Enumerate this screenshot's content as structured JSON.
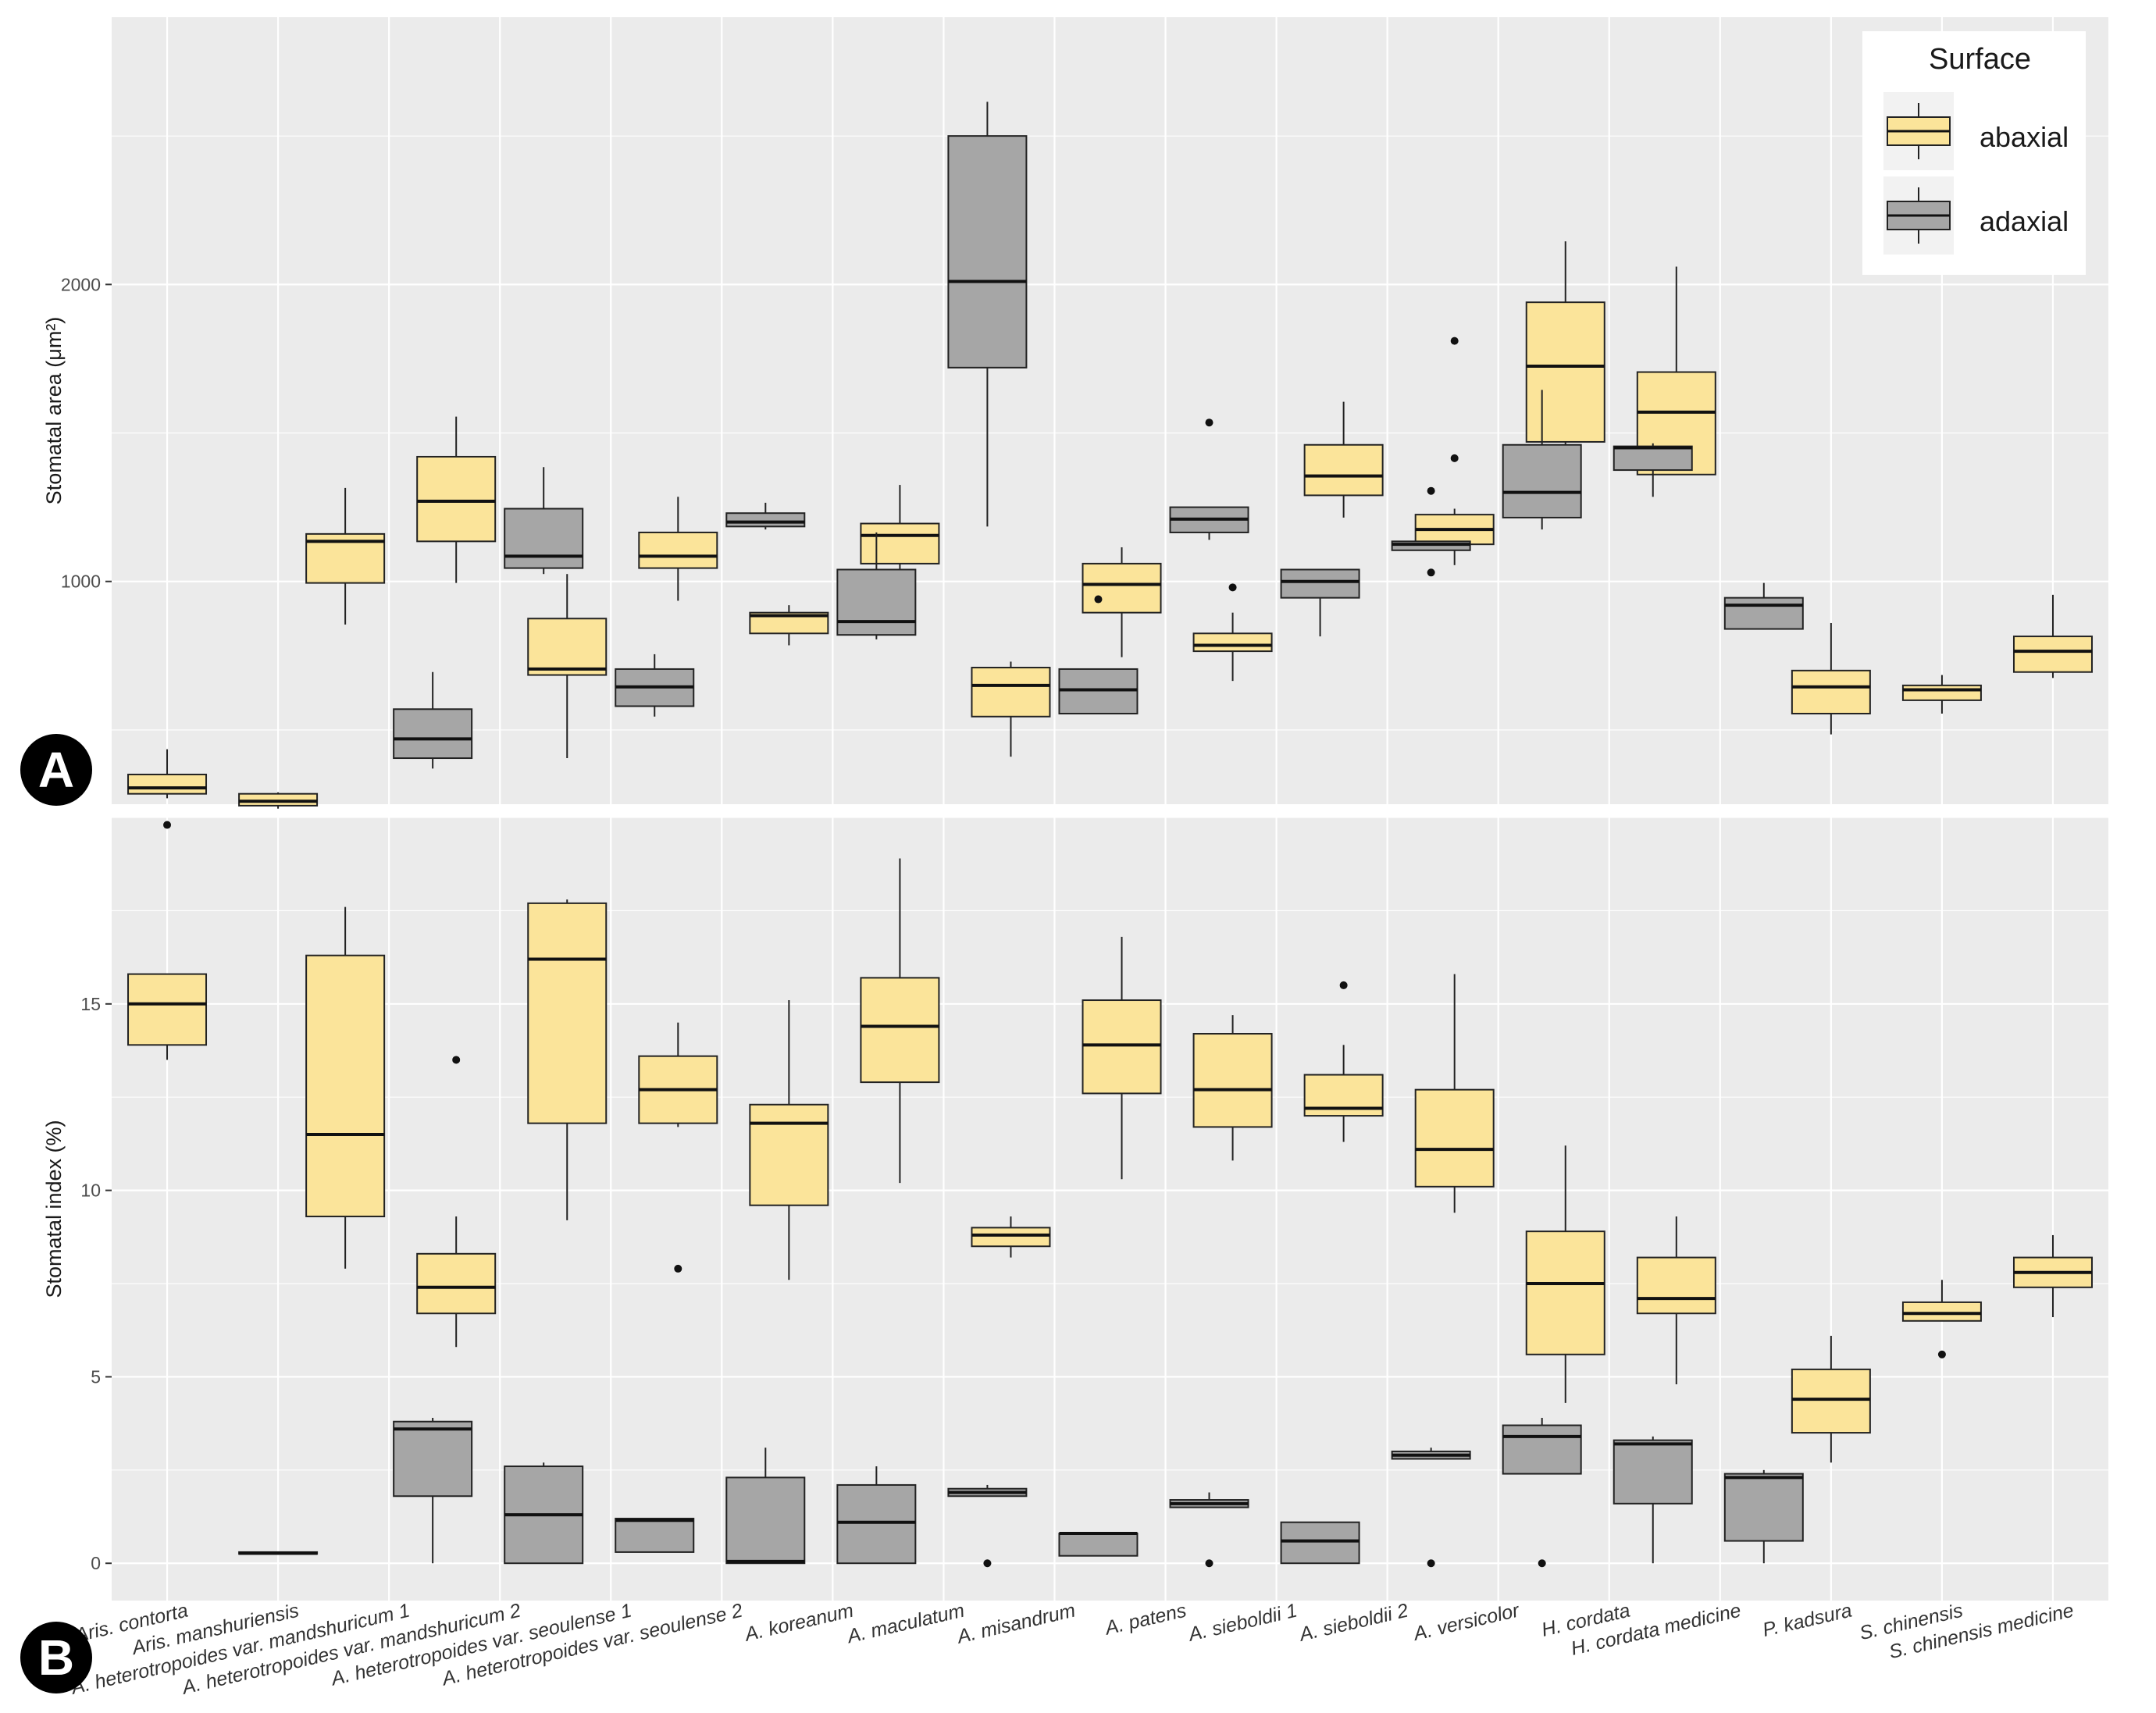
{
  "colors": {
    "abaxial": "#fbe49a",
    "adaxial": "#a6a6a6",
    "panel_bg": "#ebebeb",
    "grid": "#ffffff"
  },
  "chart_data": [
    {
      "panel": "A",
      "type": "boxplot",
      "ylabel": "Stomatal area (μm²)",
      "ylim": [
        250,
        2900
      ],
      "yticks": [
        1000,
        2000
      ],
      "legend": {
        "title": "Surface",
        "entries": [
          "abaxial",
          "adaxial"
        ],
        "position": "top-right"
      },
      "categories": [
        "Aris. contorta",
        "Aris. manshuriensis",
        "A. heterotropoides var. mandshuricum 1",
        "A. heterotropoides var. mandshuricum 2",
        "A. heterotropoides var. seoulense 1",
        "A. heterotropoides var. seoulense 2",
        "A. koreanum",
        "A. maculatum",
        "A. misandrum",
        "A. patens",
        "A. sieboldii 1",
        "A. sieboldii 2",
        "A. versicolor",
        "H. cordata",
        "H. cordata medicine",
        "P. kadsura",
        "S. chinensis",
        "S. chinensis medicine"
      ],
      "series": [
        {
          "name": "abaxial",
          "boxes": [
            {
              "min": 270,
              "q1": 285,
              "median": 305,
              "q3": 350,
              "max": 435,
              "outliers": []
            },
            {
              "min": 235,
              "q1": 245,
              "median": 260,
              "q3": 285,
              "max": 290,
              "outliers": []
            },
            {
              "min": 855,
              "q1": 995,
              "median": 1135,
              "q3": 1160,
              "max": 1315,
              "outliers": []
            },
            {
              "min": 995,
              "q1": 1135,
              "median": 1270,
              "q3": 1420,
              "max": 1555,
              "outliers": []
            },
            {
              "min": 405,
              "q1": 685,
              "median": 705,
              "q3": 875,
              "max": 1025,
              "outliers": []
            },
            {
              "min": 935,
              "q1": 1045,
              "median": 1085,
              "q3": 1165,
              "max": 1285,
              "outliers": []
            },
            {
              "min": 785,
              "q1": 825,
              "median": 885,
              "q3": 895,
              "max": 920,
              "outliers": []
            },
            {
              "min": 1000,
              "q1": 1060,
              "median": 1155,
              "q3": 1195,
              "max": 1325,
              "outliers": []
            },
            {
              "min": 410,
              "q1": 545,
              "median": 650,
              "q3": 710,
              "max": 730,
              "outliers": []
            },
            {
              "min": 745,
              "q1": 895,
              "median": 990,
              "q3": 1060,
              "max": 1115,
              "outliers": []
            },
            {
              "min": 665,
              "q1": 765,
              "median": 785,
              "q3": 825,
              "max": 895,
              "outliers": [
                980
              ]
            },
            {
              "min": 1215,
              "q1": 1290,
              "median": 1355,
              "q3": 1460,
              "max": 1605,
              "outliers": []
            },
            {
              "min": 1055,
              "q1": 1125,
              "median": 1175,
              "q3": 1225,
              "max": 1245,
              "outliers": [
                1415,
                1810
              ]
            },
            {
              "min": 1285,
              "q1": 1470,
              "median": 1725,
              "q3": 1940,
              "max": 2145,
              "outliers": []
            },
            {
              "min": null,
              "q1": 1360,
              "median": 1570,
              "q3": 1705,
              "max": 2060,
              "outliers": []
            },
            {
              "min": 485,
              "q1": 555,
              "median": 645,
              "q3": 700,
              "max": 860,
              "outliers": []
            },
            {
              "min": 555,
              "q1": 600,
              "median": 635,
              "q3": 650,
              "max": 685,
              "outliers": []
            },
            {
              "min": 675,
              "q1": 695,
              "median": 765,
              "q3": 815,
              "max": 955,
              "outliers": []
            }
          ]
        },
        {
          "name": "adaxial",
          "boxes": [
            null,
            null,
            {
              "min": 370,
              "q1": 405,
              "median": 470,
              "q3": 570,
              "max": 695,
              "outliers": []
            },
            {
              "min": 1025,
              "q1": 1045,
              "median": 1085,
              "q3": 1245,
              "max": 1385,
              "outliers": []
            },
            {
              "min": 545,
              "q1": 580,
              "median": 645,
              "q3": 705,
              "max": 755,
              "outliers": []
            },
            {
              "min": 1175,
              "q1": 1185,
              "median": 1200,
              "q3": 1230,
              "max": 1265,
              "outliers": []
            },
            {
              "min": 805,
              "q1": 820,
              "median": 865,
              "q3": 1040,
              "max": 1165,
              "outliers": []
            },
            {
              "min": 1185,
              "q1": 1720,
              "median": 2010,
              "q3": 2500,
              "max": 2615,
              "outliers": []
            },
            {
              "min": 555,
              "q1": 555,
              "median": 635,
              "q3": 705,
              "max": 705,
              "outliers": [
                940
              ]
            },
            {
              "min": 1140,
              "q1": 1165,
              "median": 1210,
              "q3": 1250,
              "max": 1250,
              "outliers": [
                1535
              ]
            },
            {
              "min": 815,
              "q1": 945,
              "median": 1000,
              "q3": 1040,
              "max": 1040,
              "outliers": []
            },
            {
              "min": 1105,
              "q1": 1105,
              "median": 1125,
              "q3": 1135,
              "max": 1135,
              "outliers": [
                1030,
                1305
              ]
            },
            {
              "min": 1175,
              "q1": 1215,
              "median": 1300,
              "q3": 1460,
              "max": 1645,
              "outliers": []
            },
            {
              "min": 1285,
              "q1": 1375,
              "median": 1450,
              "q3": 1455,
              "max": 1465,
              "outliers": []
            },
            {
              "min": 840,
              "q1": 840,
              "median": 920,
              "q3": 945,
              "max": 995,
              "outliers": []
            },
            null,
            null,
            null
          ]
        }
      ]
    },
    {
      "panel": "B",
      "type": "boxplot",
      "ylabel": "Stomatal index (%)",
      "ylim": [
        -1,
        20
      ],
      "yticks": [
        0,
        5,
        10,
        15
      ],
      "categories": [
        "Aris. contorta",
        "Aris. manshuriensis",
        "A. heterotropoides var. mandshuricum 1",
        "A. heterotropoides var. mandshuricum 2",
        "A. heterotropoides var. seoulense 1",
        "A. heterotropoides var. seoulense 2",
        "A. koreanum",
        "A. maculatum",
        "A. misandrum",
        "A. patens",
        "A. sieboldii 1",
        "A. sieboldii 2",
        "A. versicolor",
        "H. cordata",
        "H. cordata medicine",
        "P. kadsura",
        "S. chinensis",
        "S. chinensis medicine"
      ],
      "series": [
        {
          "name": "abaxial",
          "boxes": [
            {
              "min": 13.5,
              "q1": 13.9,
              "median": 15.0,
              "q3": 15.8,
              "max": 15.8,
              "outliers": [
                19.8
              ]
            },
            null,
            {
              "min": 7.9,
              "q1": 9.3,
              "median": 11.5,
              "q3": 16.3,
              "max": 17.6,
              "outliers": []
            },
            {
              "min": 5.8,
              "q1": 6.7,
              "median": 7.4,
              "q3": 8.3,
              "max": 9.3,
              "outliers": [
                13.5
              ]
            },
            {
              "min": 9.2,
              "q1": 11.8,
              "median": 16.2,
              "q3": 17.7,
              "max": 17.8,
              "outliers": []
            },
            {
              "min": 11.7,
              "q1": 11.8,
              "median": 12.7,
              "q3": 13.6,
              "max": 14.5,
              "outliers": [
                7.9
              ]
            },
            {
              "min": 7.6,
              "q1": 9.6,
              "median": 11.8,
              "q3": 12.3,
              "max": 15.1,
              "outliers": []
            },
            {
              "min": 10.2,
              "q1": 12.9,
              "median": 14.4,
              "q3": 15.7,
              "max": 18.9,
              "outliers": []
            },
            {
              "min": 8.2,
              "q1": 8.5,
              "median": 8.8,
              "q3": 9.0,
              "max": 9.3,
              "outliers": []
            },
            {
              "min": 10.3,
              "q1": 12.6,
              "median": 13.9,
              "q3": 15.1,
              "max": 16.8,
              "outliers": []
            },
            {
              "min": 10.8,
              "q1": 11.7,
              "median": 12.7,
              "q3": 14.2,
              "max": 14.7,
              "outliers": []
            },
            {
              "min": 11.3,
              "q1": 12.0,
              "median": 12.2,
              "q3": 13.1,
              "max": 13.9,
              "outliers": [
                15.5
              ]
            },
            {
              "min": 9.4,
              "q1": 10.1,
              "median": 11.1,
              "q3": 12.7,
              "max": 15.8,
              "outliers": []
            },
            {
              "min": 4.3,
              "q1": 5.6,
              "median": 7.5,
              "q3": 8.9,
              "max": 11.2,
              "outliers": []
            },
            {
              "min": 4.8,
              "q1": 6.7,
              "median": 7.1,
              "q3": 8.2,
              "max": 9.3,
              "outliers": []
            },
            {
              "min": 2.7,
              "q1": 3.5,
              "median": 4.4,
              "q3": 5.2,
              "max": 6.1,
              "outliers": []
            },
            {
              "min": 6.5,
              "q1": 6.5,
              "median": 6.7,
              "q3": 7.0,
              "max": 7.6,
              "outliers": [
                5.6
              ]
            },
            {
              "min": 6.6,
              "q1": 7.4,
              "median": 7.8,
              "q3": 8.2,
              "max": 8.8,
              "outliers": []
            }
          ]
        },
        {
          "name": "adaxial",
          "boxes": [
            null,
            {
              "min": 0.25,
              "q1": 0.25,
              "median": 0.27,
              "q3": 0.3,
              "max": 0.3,
              "outliers": []
            },
            {
              "min": 0.0,
              "q1": 1.8,
              "median": 3.6,
              "q3": 3.8,
              "max": 3.9,
              "outliers": []
            },
            {
              "min": 0.0,
              "q1": 0.0,
              "median": 1.3,
              "q3": 2.6,
              "max": 2.7,
              "outliers": []
            },
            {
              "min": 0.3,
              "q1": 0.3,
              "median": 1.15,
              "q3": 1.2,
              "max": 1.2,
              "outliers": []
            },
            {
              "min": 0.0,
              "q1": 0.0,
              "median": 0.05,
              "q3": 2.3,
              "max": 3.1,
              "outliers": []
            },
            {
              "min": 0.0,
              "q1": 0.0,
              "median": 1.1,
              "q3": 2.1,
              "max": 2.6,
              "outliers": []
            },
            {
              "min": 1.8,
              "q1": 1.8,
              "median": 1.9,
              "q3": 2.0,
              "max": 2.1,
              "outliers": [
                0.0
              ]
            },
            {
              "min": 0.2,
              "q1": 0.2,
              "median": 0.8,
              "q3": 0.8,
              "max": 0.8,
              "outliers": []
            },
            {
              "min": 1.5,
              "q1": 1.5,
              "median": 1.6,
              "q3": 1.7,
              "max": 1.9,
              "outliers": [
                0.0
              ]
            },
            {
              "min": 0.0,
              "q1": 0.0,
              "median": 0.6,
              "q3": 1.1,
              "max": 1.1,
              "outliers": []
            },
            {
              "min": 2.8,
              "q1": 2.8,
              "median": 2.9,
              "q3": 3.0,
              "max": 3.1,
              "outliers": [
                0.0
              ]
            },
            {
              "min": 2.4,
              "q1": 2.4,
              "median": 3.4,
              "q3": 3.7,
              "max": 3.9,
              "outliers": [
                0.0
              ]
            },
            {
              "min": 0.0,
              "q1": 1.6,
              "median": 3.2,
              "q3": 3.3,
              "max": 3.4,
              "outliers": []
            },
            {
              "min": 0.0,
              "q1": 0.6,
              "median": 2.3,
              "q3": 2.4,
              "max": 2.5,
              "outliers": []
            },
            null,
            null,
            null
          ]
        }
      ]
    }
  ]
}
